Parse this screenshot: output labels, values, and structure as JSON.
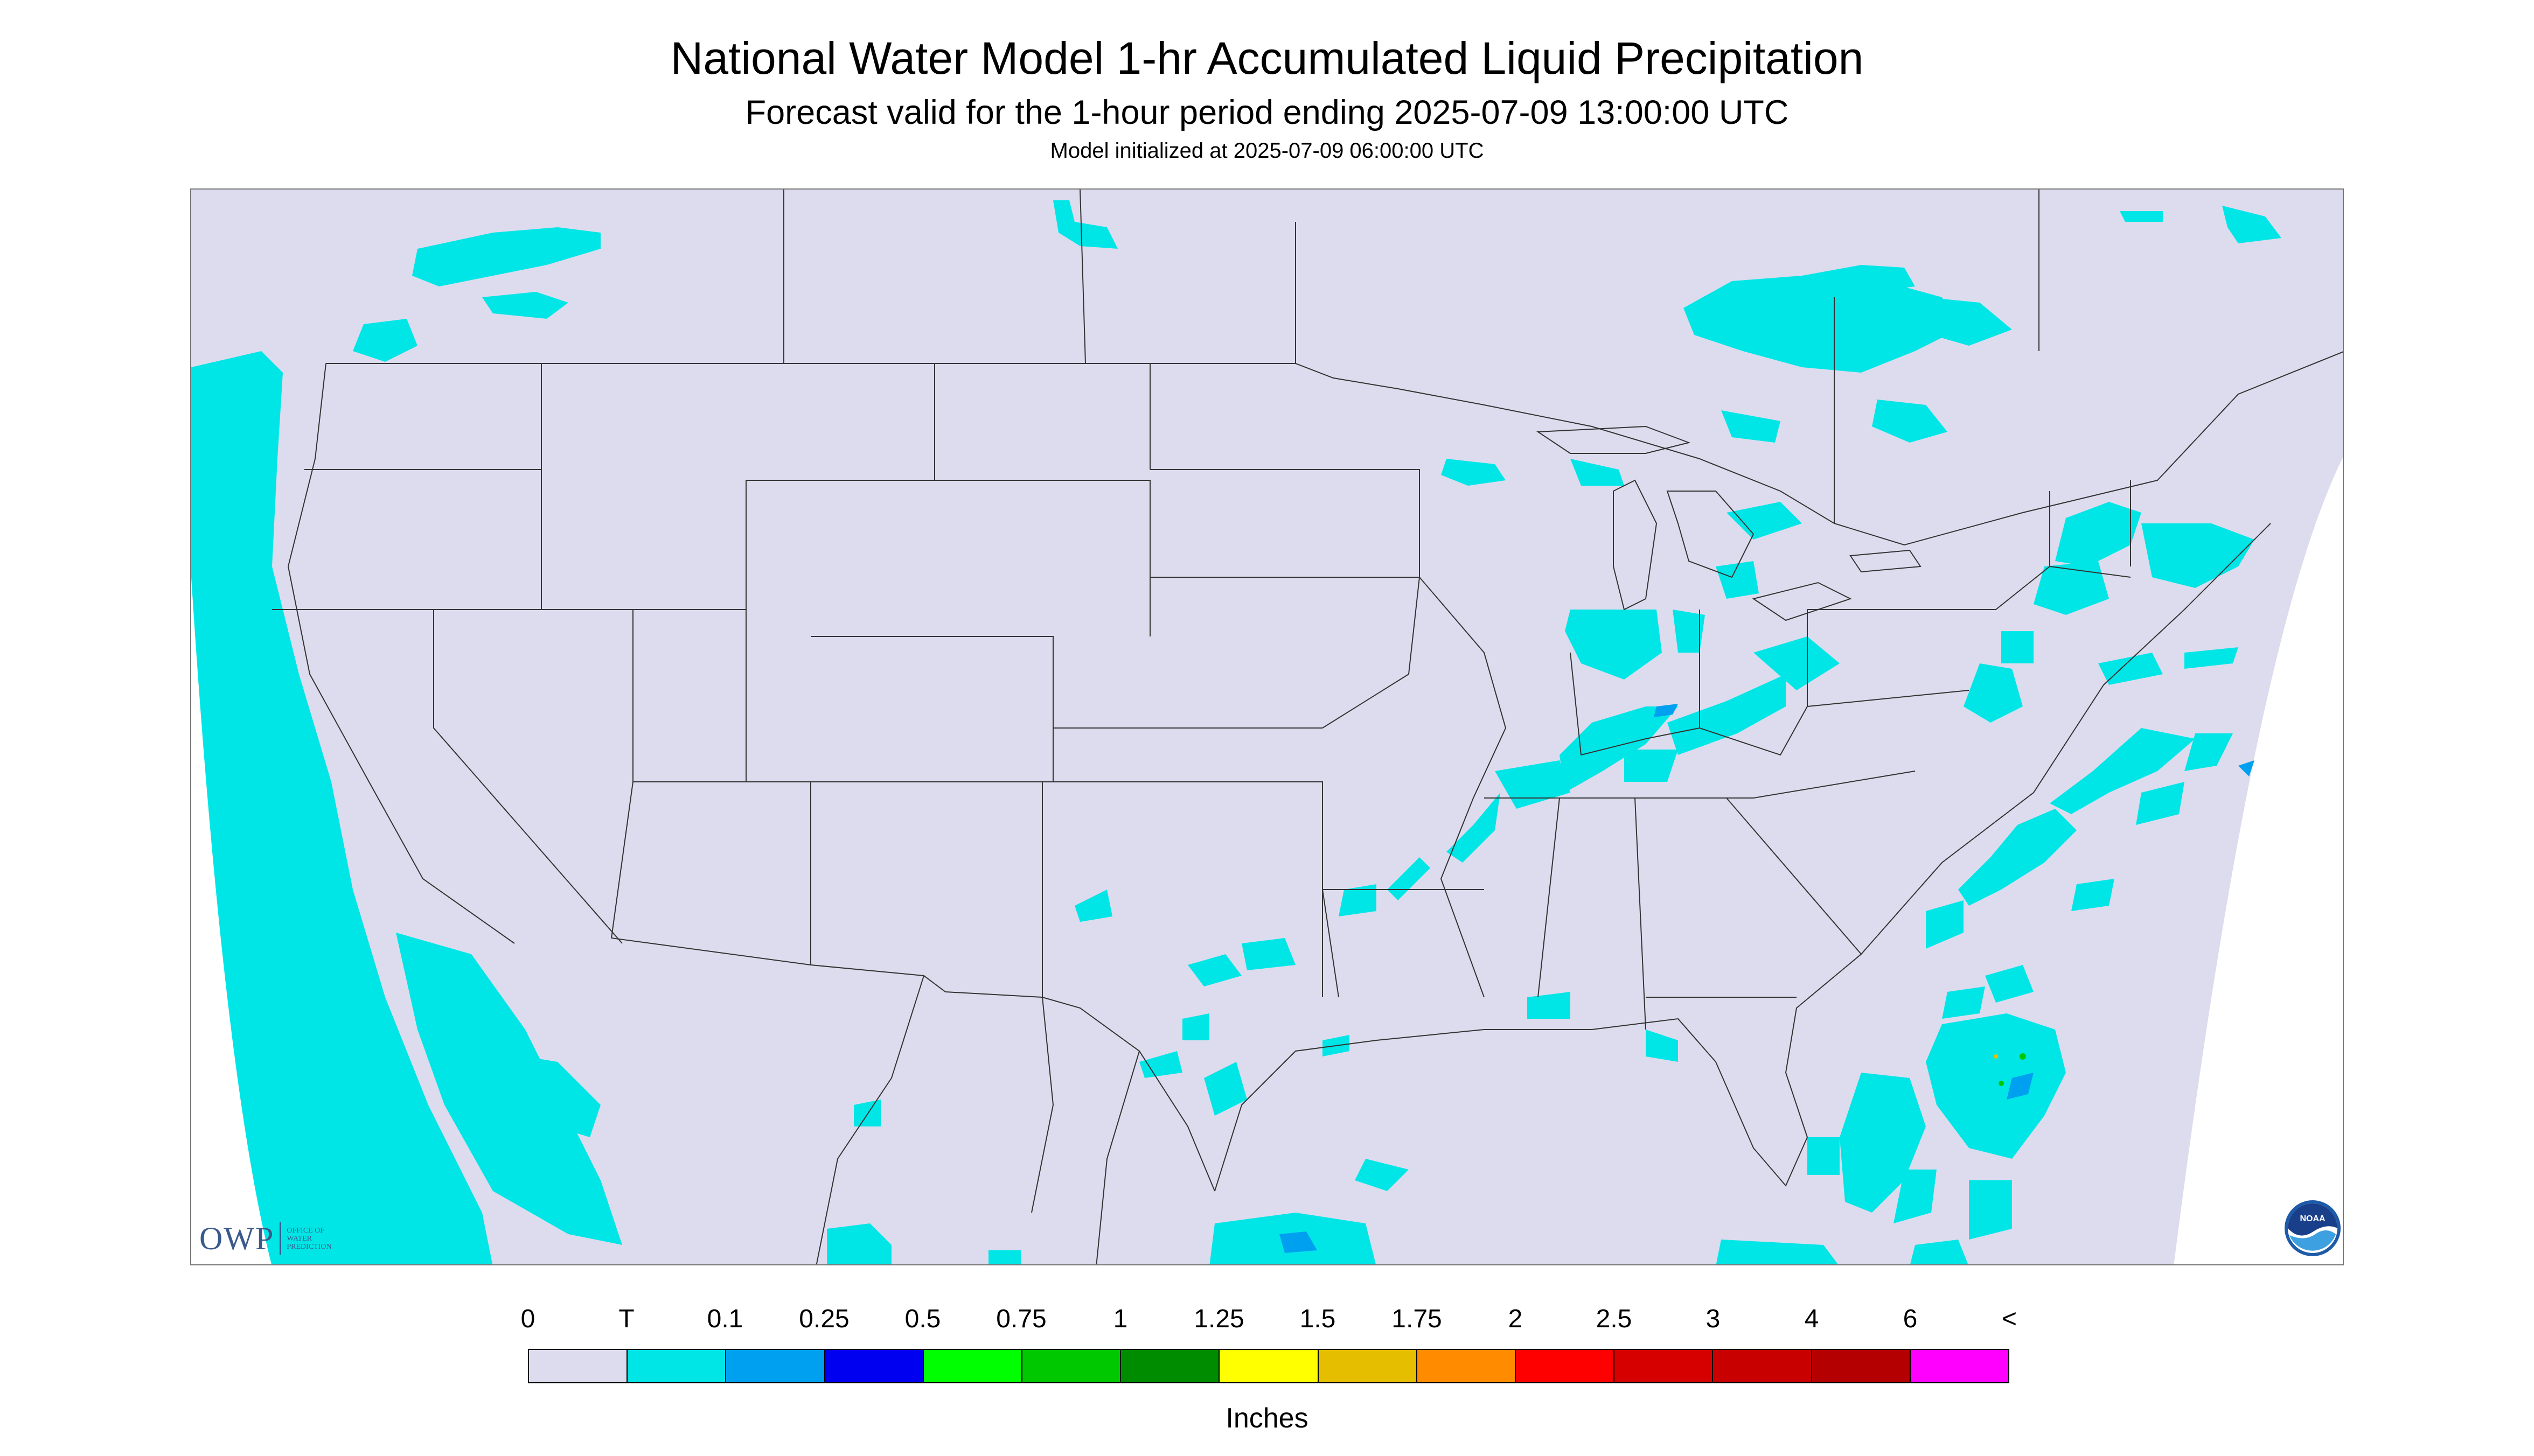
{
  "header": {
    "title": "National Water Model 1-hr Accumulated Liquid Precipitation",
    "subtitle": "Forecast valid for the 1-hour period ending 2025-07-09 13:00:00 UTC",
    "init": "Model initialized at 2025-07-09 06:00:00 UTC"
  },
  "logos": {
    "owp_mark": "OWP",
    "owp_text_1": "OFFICE OF",
    "owp_text_2": "WATER",
    "owp_text_3": "PREDICTION",
    "noaa_text": "NOAA"
  },
  "colors": {
    "background_no_precip": "#dcdcee",
    "outside_domain": "#ffffff",
    "trace": "#00e6e6",
    "border_lines": "#333333"
  },
  "legend": {
    "labels": [
      "0",
      "T",
      "0.1",
      "0.25",
      "0.5",
      "0.75",
      "1",
      "1.25",
      "1.5",
      "1.75",
      "2",
      "2.5",
      "3",
      "4",
      "6",
      "<"
    ],
    "colors": [
      "#dcdcee",
      "#00e6e6",
      "#00a0f0",
      "#0000f0",
      "#00ff00",
      "#00c800",
      "#008c00",
      "#ffff00",
      "#e6be00",
      "#ff8c00",
      "#ff0000",
      "#d70000",
      "#c80000",
      "#b40000",
      "#ff00ff",
      "#9650c8"
    ],
    "units": "Inches"
  }
}
